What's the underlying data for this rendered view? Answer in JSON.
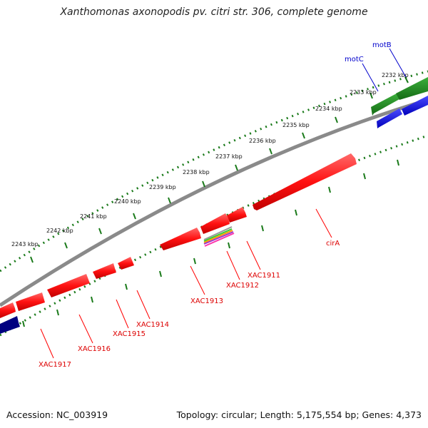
{
  "title": "Xanthomonas axonopodis pv. citri str. 306, complete genome",
  "footer": {
    "accession": "Accession: NC_003919",
    "summary": "Topology: circular; Length: 5,175,554 bp; Genes: 4,373"
  },
  "colors": {
    "forward_gene": "#ff1111",
    "forward_gene_rna": "#1111ee",
    "forward_green": "#1a8c1a",
    "dark_blue": "#000080",
    "backbone": "#8a8a8a",
    "outer_ticks": "#1a7a1a",
    "inner_ticks": "#1a7a1a",
    "label_red": "#dd0000",
    "label_blue": "#0000cc"
  },
  "kbp_labels": [
    "2232 kbp",
    "2233 kbp",
    "2234 kbp",
    "2235 kbp",
    "2236 kbp",
    "2237 kbp",
    "2238 kbp",
    "2239 kbp",
    "2240 kbp",
    "2241 kbp",
    "2242 kbp",
    "2243 kbp"
  ],
  "gene_labels_red": [
    "cirA",
    "XAC1911",
    "XAC1912",
    "XAC1913",
    "XAC1914",
    "XAC1915",
    "XAC1916",
    "XAC1917"
  ],
  "gene_labels_blue": [
    "motB",
    "motC"
  ]
}
